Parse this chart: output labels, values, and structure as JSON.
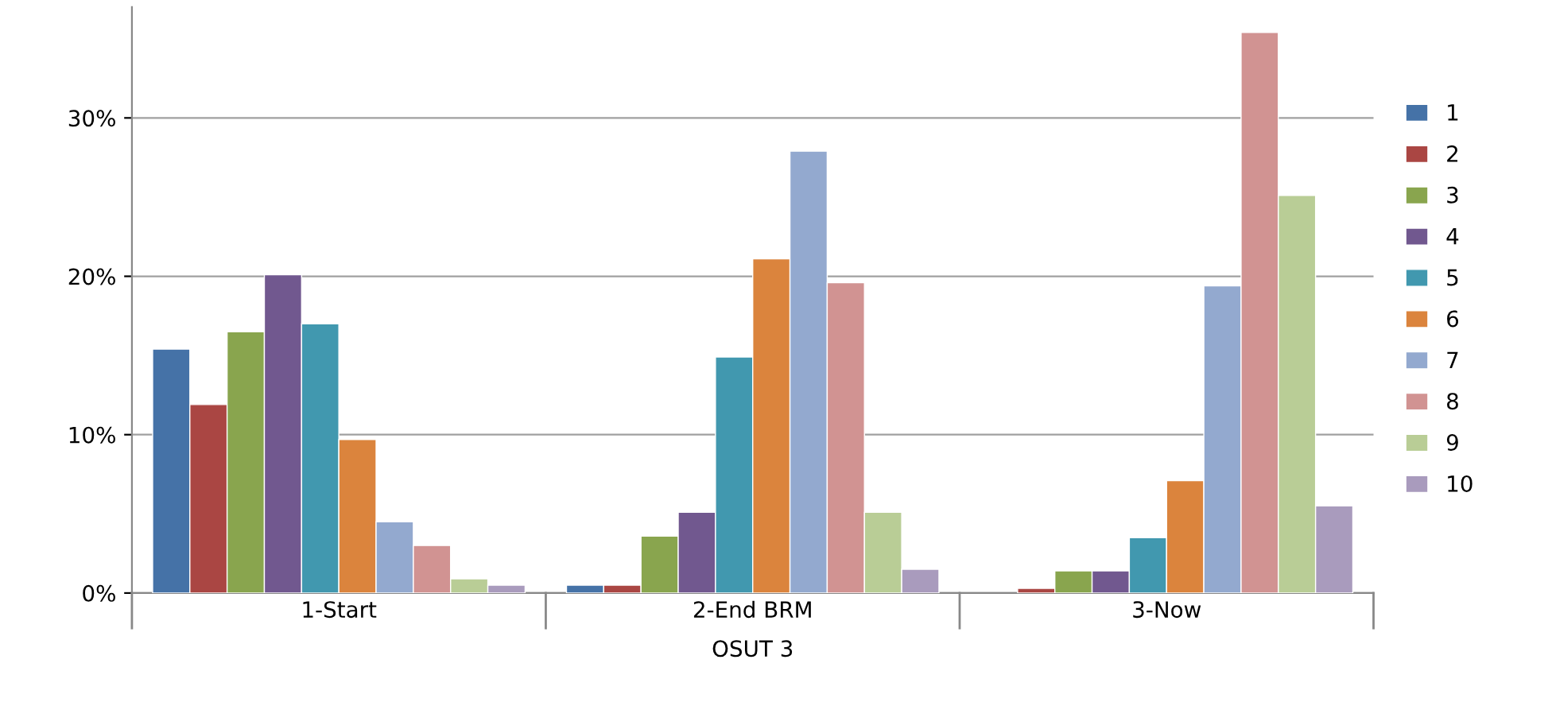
{
  "chart_data": {
    "type": "bar",
    "xlabel": "OSUT 3",
    "categories": [
      "1-Start",
      "2-End BRM",
      "3-Now"
    ],
    "series": [
      {
        "name": "1",
        "color": "#4572a7",
        "values": [
          15.4,
          0.5,
          null
        ]
      },
      {
        "name": "2",
        "color": "#aa4643",
        "values": [
          11.9,
          0.5,
          0.3
        ]
      },
      {
        "name": "3",
        "color": "#89a54e",
        "values": [
          16.5,
          3.6,
          1.4
        ]
      },
      {
        "name": "4",
        "color": "#71588f",
        "values": [
          20.1,
          5.1,
          1.4
        ]
      },
      {
        "name": "5",
        "color": "#4198af",
        "values": [
          17.0,
          14.9,
          3.5
        ]
      },
      {
        "name": "6",
        "color": "#db843d",
        "values": [
          9.7,
          21.1,
          7.1
        ]
      },
      {
        "name": "7",
        "color": "#93a9cf",
        "values": [
          4.5,
          27.9,
          19.4
        ]
      },
      {
        "name": "8",
        "color": "#d19392",
        "values": [
          3.0,
          19.6,
          35.4
        ]
      },
      {
        "name": "9",
        "color": "#b9cd96",
        "values": [
          0.9,
          5.1,
          25.1
        ]
      },
      {
        "name": "10",
        "color": "#a99bbd",
        "values": [
          0.5,
          1.5,
          5.5
        ]
      }
    ],
    "ylim": [
      0,
      37
    ],
    "yticks": [
      {
        "value": 0,
        "label": "0%"
      },
      {
        "value": 10,
        "label": "10%"
      },
      {
        "value": 20,
        "label": "20%"
      },
      {
        "value": 30,
        "label": "30%"
      }
    ],
    "grid": "y",
    "legend": "right"
  }
}
